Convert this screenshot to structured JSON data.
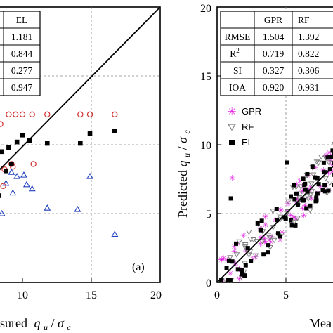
{
  "colors": {
    "gpr": "#e020e0",
    "rf": "#808080",
    "el": "#000000",
    "left_red": "#d03030",
    "left_blue": "#2040c0",
    "grid": "#888888"
  },
  "left_panel": {
    "panel_label": "(a)",
    "x_ticks": [
      "10",
      "15",
      "20"
    ],
    "xlabel_prefix": "sured",
    "xlabel_q": "q",
    "xlabel_u": "u",
    "xlabel_sep": " /",
    "xlabel_sigma": "σ",
    "xlabel_c": "c",
    "table": {
      "header": "EL",
      "values": [
        "1.181",
        "0.844",
        "0.277",
        "0.947"
      ]
    }
  },
  "right_panel": {
    "y_ticks": [
      "0",
      "5",
      "10",
      "15",
      "20"
    ],
    "x_ticks": [
      "0",
      "5"
    ],
    "ylabel_prefix": "Predicted ",
    "ylabel_q": "q",
    "ylabel_u": "u",
    "ylabel_sep": " /",
    "ylabel_sigma": "σ",
    "ylabel_c": "c",
    "xlabel_prefix": "Mea",
    "table": {
      "headers": [
        "GPR",
        "RF"
      ],
      "rows": [
        {
          "label": "RMSE",
          "values": [
            "1.504",
            "1.392"
          ]
        },
        {
          "label": "R",
          "sup": "2",
          "values": [
            "0.719",
            "0.822"
          ]
        },
        {
          "label": "SI",
          "values": [
            "0.327",
            "0.306"
          ]
        },
        {
          "label": "IOA",
          "values": [
            "0.920",
            "0.931"
          ]
        }
      ]
    },
    "legend": [
      "GPR",
      "RF",
      "EL"
    ]
  },
  "chart_data": [
    {
      "type": "scatter",
      "xlim": [
        8,
        20
      ],
      "ylim": [
        0,
        20
      ],
      "grid": true,
      "series": [
        {
          "name": "",
          "marker": "circle",
          "color": "#d03030",
          "points": [
            [
              8.4,
              11.5
            ],
            [
              9.0,
              12.2
            ],
            [
              9.5,
              12.2
            ],
            [
              10.0,
              12.2
            ],
            [
              10.7,
              12.2
            ],
            [
              11.8,
              12.2
            ],
            [
              14.2,
              12.2
            ],
            [
              14.9,
              12.2
            ],
            [
              16.7,
              12.2
            ],
            [
              8.7,
              8.2
            ],
            [
              9.2,
              8.6
            ],
            [
              9.3,
              8.4
            ],
            [
              10.8,
              8.6
            ],
            [
              8.6,
              7.0
            ],
            [
              8.0,
              6.2
            ]
          ]
        },
        {
          "name": "",
          "marker": "triangle",
          "color": "#2040c0",
          "points": [
            [
              8.8,
              7.2
            ],
            [
              9.2,
              8.0
            ],
            [
              9.6,
              7.7
            ],
            [
              10.1,
              7.8
            ],
            [
              10.3,
              7.1
            ],
            [
              10.7,
              6.8
            ],
            [
              9.3,
              6.5
            ],
            [
              11.8,
              5.4
            ],
            [
              14.0,
              5.3
            ],
            [
              14.9,
              7.7
            ],
            [
              8.5,
              5.0
            ],
            [
              16.7,
              3.5
            ]
          ]
        },
        {
          "name": "",
          "marker": "square",
          "color": "#000000",
          "points": [
            [
              8.5,
              9.5
            ],
            [
              9.0,
              9.8
            ],
            [
              9.6,
              10.2
            ],
            [
              10.0,
              10.7
            ],
            [
              10.5,
              10.3
            ],
            [
              11.8,
              10.1
            ],
            [
              14.2,
              10.1
            ],
            [
              14.9,
              10.8
            ],
            [
              16.7,
              11.0
            ],
            [
              8.8,
              8.1
            ],
            [
              9.2,
              8.6
            ],
            [
              8.3,
              6.3
            ]
          ]
        }
      ],
      "reference_line": "y = x"
    },
    {
      "type": "scatter",
      "xlim": [
        0,
        9.5
      ],
      "ylim": [
        0,
        20
      ],
      "xlabel": "Mea",
      "ylabel": "Predicted q_u/σ_c",
      "grid": true,
      "legend_position": "top-left",
      "series": [
        {
          "name": "GPR",
          "marker": "asterisk",
          "color": "#e020e0"
        },
        {
          "name": "RF",
          "marker": "triangle-down",
          "color": "#808080"
        },
        {
          "name": "EL",
          "marker": "square",
          "color": "#000000"
        }
      ],
      "reference_line": "y = x"
    }
  ]
}
